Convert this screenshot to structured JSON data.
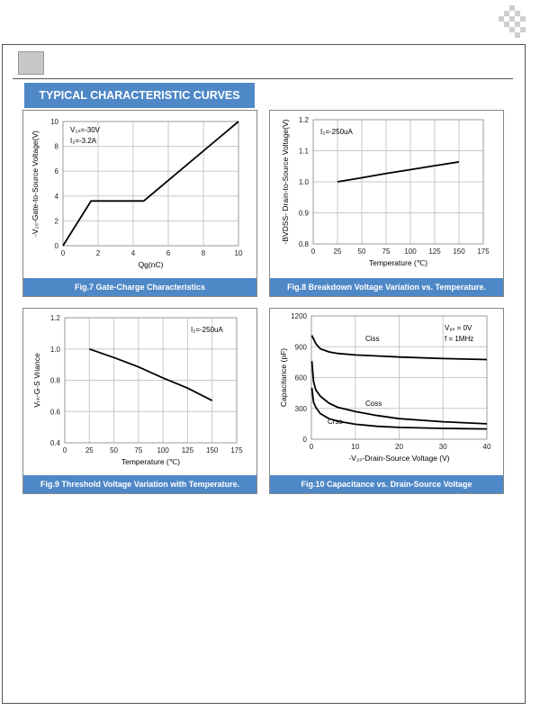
{
  "banner": "TYPICAL CHARACTERISTIC CURVES",
  "chart_data": [
    {
      "type": "line",
      "caption": "Fig.7 Gate-Charge Characteristics",
      "xlabel": "Qg(nC)",
      "ylabel": "-V₂ₛ-Gate-to-Source Voltage(V)",
      "xlim": [
        0,
        10
      ],
      "ylim": [
        0,
        10
      ],
      "xticks": [
        0,
        2,
        4,
        6,
        8,
        10
      ],
      "yticks": [
        0,
        2,
        4,
        6,
        8,
        10
      ],
      "yprec": 0,
      "annotations": [
        "V₂ₛ=-30V",
        "I₂=-3.2A"
      ],
      "series": [
        {
          "x": [
            0,
            1.6,
            4.6,
            10
          ],
          "y": [
            0,
            3.6,
            3.6,
            10
          ]
        }
      ]
    },
    {
      "type": "line",
      "caption": "Fig.8 Breakdown Voltage Variation vs. Temperature.",
      "xlabel": "Temperature (℃)",
      "ylabel": "-BVDSS- Drain-to-Source Voltage(V)",
      "xlim": [
        0,
        175
      ],
      "ylim": [
        0.8,
        1.2
      ],
      "xticks": [
        0,
        25,
        50,
        75,
        100,
        125,
        150,
        175
      ],
      "yticks": [
        0.8,
        0.9,
        1.0,
        1.1,
        1.2
      ],
      "yprec": 1,
      "annotations": [
        "I₂=-250uA"
      ],
      "series": [
        {
          "x": [
            25,
            50,
            75,
            100,
            125,
            150
          ],
          "y": [
            1.0,
            1.013,
            1.027,
            1.039,
            1.052,
            1.064
          ]
        }
      ]
    },
    {
      "type": "line",
      "caption": "Fig.9 Threshold Voltage Variation with Temperature.",
      "xlabel": "Temperature (℃)",
      "ylabel": "Vₜₕ-G-S Vriance",
      "xlim": [
        0,
        175
      ],
      "ylim": [
        0.4,
        1.2
      ],
      "xticks": [
        0,
        25,
        50,
        75,
        100,
        125,
        150,
        175
      ],
      "yticks": [
        0.4,
        0.6,
        0.8,
        1.0,
        1.2
      ],
      "yprec": 1,
      "annotations": [
        "I₂=-250uA"
      ],
      "series": [
        {
          "x": [
            25,
            50,
            75,
            100,
            125,
            150
          ],
          "y": [
            1.0,
            0.945,
            0.885,
            0.815,
            0.75,
            0.67
          ]
        }
      ]
    },
    {
      "type": "line",
      "caption": "Fig.10 Capacitance vs. Drain-Source Voltage",
      "xlabel": "-V₂ₛ-Drain-Source Voltage (V)",
      "ylabel": "Capacitance (pF)",
      "xlim": [
        0,
        40
      ],
      "ylim": [
        0,
        1200
      ],
      "xticks": [
        0,
        10,
        20,
        30,
        40
      ],
      "yticks": [
        0,
        300,
        600,
        900,
        1200
      ],
      "yprec": 0,
      "annotations": [
        "V₉ₛ = 0V",
        "f = 1MHz"
      ],
      "series": [
        {
          "name": "Ciss",
          "x": [
            0.1,
            1,
            2,
            4,
            6,
            10,
            15,
            20,
            30,
            40
          ],
          "y": [
            1010,
            930,
            880,
            850,
            835,
            820,
            810,
            800,
            785,
            775
          ]
        },
        {
          "name": "Coss",
          "x": [
            0.1,
            0.5,
            1,
            2,
            4,
            6,
            10,
            15,
            20,
            30,
            40
          ],
          "y": [
            760,
            560,
            480,
            420,
            350,
            310,
            270,
            230,
            200,
            170,
            150
          ]
        },
        {
          "name": "Crss",
          "x": [
            0.1,
            0.5,
            1,
            2,
            4,
            6,
            10,
            15,
            20,
            30,
            40
          ],
          "y": [
            500,
            360,
            310,
            250,
            200,
            175,
            145,
            125,
            115,
            105,
            100
          ]
        }
      ]
    }
  ]
}
